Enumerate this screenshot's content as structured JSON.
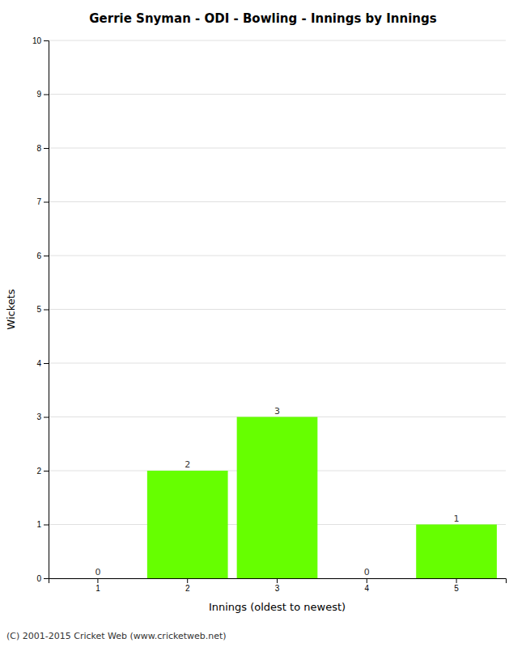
{
  "chart_data": {
    "type": "bar",
    "title": "Gerrie Snyman - ODI - Bowling - Innings by Innings",
    "xlabel": "Innings (oldest to newest)",
    "ylabel": "Wickets",
    "categories": [
      1,
      2,
      3,
      4,
      5
    ],
    "values": [
      0,
      2,
      3,
      0,
      1
    ],
    "color": "#66ff00",
    "ylim": [
      0,
      10
    ],
    "yticks": [
      0,
      1,
      2,
      3,
      4,
      5,
      6,
      7,
      8,
      9,
      10
    ],
    "grid": true,
    "data_labels": true,
    "footer": "(C) 2001-2015 Cricket Web (www.cricketweb.net)"
  }
}
